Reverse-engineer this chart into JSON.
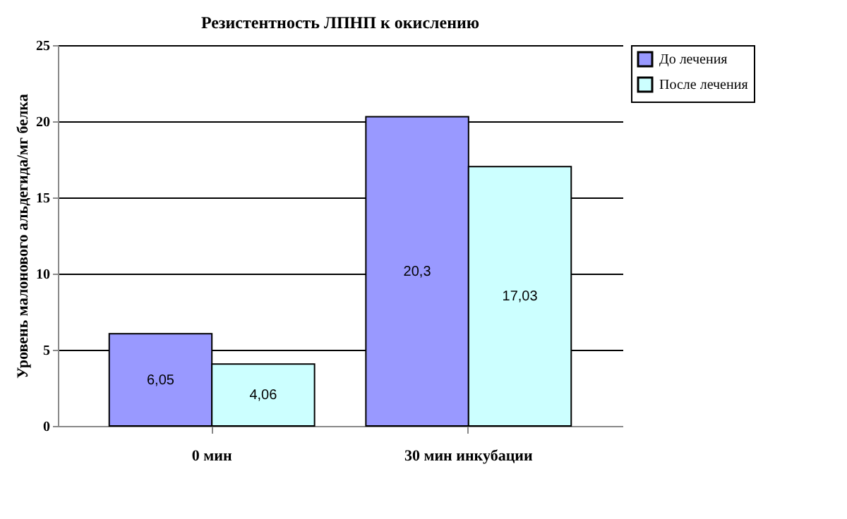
{
  "chart_data": {
    "type": "bar",
    "title": "Резистентность ЛПНП к окислению",
    "ylabel": "Уровень малонового альдегида/мг белка",
    "categories": [
      "0 мин",
      "30 мин инкубации"
    ],
    "series": [
      {
        "name": "До лечения",
        "color": "#9999ff",
        "values": [
          6.05,
          20.3
        ],
        "value_labels": [
          "6,05",
          "20,3"
        ]
      },
      {
        "name": "После лечения",
        "color": "#ccffff",
        "values": [
          4.06,
          17.03
        ],
        "value_labels": [
          "4,06",
          "17,03"
        ]
      }
    ],
    "ylim": [
      0,
      25
    ],
    "yticks": [
      0,
      5,
      10,
      15,
      20,
      25
    ],
    "grid": "y",
    "legend": "top right"
  }
}
